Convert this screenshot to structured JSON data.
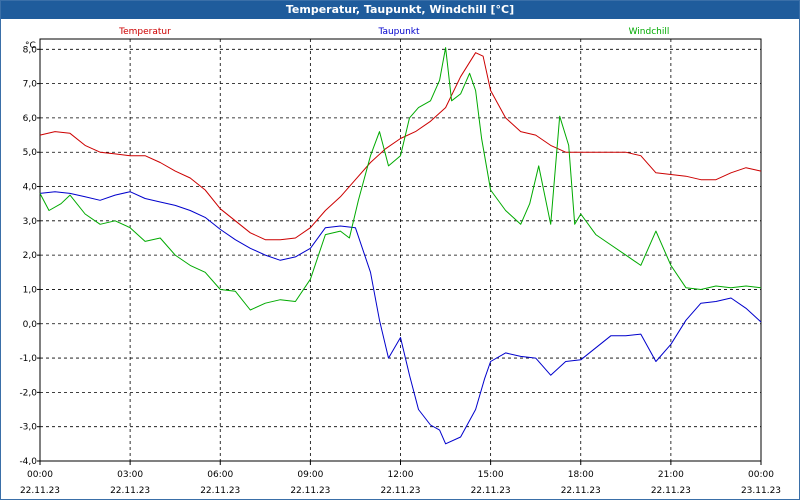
{
  "window": {
    "title": "Temperatur, Taupunkt, Windchill [°C]"
  },
  "chart_data": {
    "type": "line",
    "title": "Temperatur, Taupunkt, Windchill [°C]",
    "ylabel": "°C",
    "ylim": [
      -4.0,
      8.3
    ],
    "yticks": [
      "8,0",
      "7,0",
      "6,0",
      "5,0",
      "4,0",
      "3,0",
      "2,0",
      "1,0",
      "0,0",
      "-1,0",
      "-2,0",
      "-3,0",
      "-4,0"
    ],
    "xlim": [
      0,
      24
    ],
    "xticks": [
      {
        "time": "00:00",
        "date": "22.11.23"
      },
      {
        "time": "03:00",
        "date": "22.11.23"
      },
      {
        "time": "06:00",
        "date": "22.11.23"
      },
      {
        "time": "09:00",
        "date": "22.11.23"
      },
      {
        "time": "12:00",
        "date": "22.11.23"
      },
      {
        "time": "15:00",
        "date": "22.11.23"
      },
      {
        "time": "18:00",
        "date": "22.11.23"
      },
      {
        "time": "21:00",
        "date": "22.11.23"
      },
      {
        "time": "00:00",
        "date": "23.11.23"
      }
    ],
    "grid": true,
    "legend": "top",
    "series": [
      {
        "name": "Temperatur",
        "color": "#cc0000",
        "points": [
          [
            0,
            5.5
          ],
          [
            0.5,
            5.6
          ],
          [
            1,
            5.55
          ],
          [
            1.5,
            5.2
          ],
          [
            2,
            5.0
          ],
          [
            2.5,
            4.95
          ],
          [
            3,
            4.9
          ],
          [
            3.5,
            4.9
          ],
          [
            4,
            4.7
          ],
          [
            4.5,
            4.45
          ],
          [
            5,
            4.25
          ],
          [
            5.5,
            3.9
          ],
          [
            6,
            3.35
          ],
          [
            6.5,
            3.0
          ],
          [
            7,
            2.65
          ],
          [
            7.5,
            2.45
          ],
          [
            8,
            2.45
          ],
          [
            8.5,
            2.5
          ],
          [
            9,
            2.8
          ],
          [
            9.5,
            3.3
          ],
          [
            10,
            3.7
          ],
          [
            10.5,
            4.2
          ],
          [
            11,
            4.7
          ],
          [
            11.5,
            5.1
          ],
          [
            12,
            5.4
          ],
          [
            12.5,
            5.6
          ],
          [
            13,
            5.9
          ],
          [
            13.5,
            6.3
          ],
          [
            14,
            7.2
          ],
          [
            14.5,
            7.9
          ],
          [
            14.75,
            7.8
          ],
          [
            15,
            6.8
          ],
          [
            15.5,
            6.0
          ],
          [
            16,
            5.6
          ],
          [
            16.5,
            5.5
          ],
          [
            17,
            5.2
          ],
          [
            17.5,
            5.0
          ],
          [
            18,
            5.0
          ],
          [
            18.5,
            5.0
          ],
          [
            19,
            5.0
          ],
          [
            19.5,
            5.0
          ],
          [
            20,
            4.9
          ],
          [
            20.5,
            4.4
          ],
          [
            21,
            4.35
          ],
          [
            21.5,
            4.3
          ],
          [
            22,
            4.2
          ],
          [
            22.5,
            4.2
          ],
          [
            23,
            4.4
          ],
          [
            23.5,
            4.55
          ],
          [
            24,
            4.45
          ]
        ]
      },
      {
        "name": "Taupunkt",
        "color": "#0000cc",
        "points": [
          [
            0,
            3.8
          ],
          [
            0.5,
            3.85
          ],
          [
            1,
            3.8
          ],
          [
            1.5,
            3.7
          ],
          [
            2,
            3.6
          ],
          [
            2.5,
            3.75
          ],
          [
            3,
            3.85
          ],
          [
            3.5,
            3.65
          ],
          [
            4,
            3.55
          ],
          [
            4.5,
            3.45
          ],
          [
            5,
            3.3
          ],
          [
            5.5,
            3.1
          ],
          [
            6,
            2.75
          ],
          [
            6.5,
            2.45
          ],
          [
            7,
            2.2
          ],
          [
            7.5,
            2.0
          ],
          [
            8,
            1.85
          ],
          [
            8.5,
            1.95
          ],
          [
            9,
            2.2
          ],
          [
            9.5,
            2.8
          ],
          [
            10,
            2.85
          ],
          [
            10.5,
            2.8
          ],
          [
            11,
            1.5
          ],
          [
            11.3,
            0.1
          ],
          [
            11.6,
            -1.0
          ],
          [
            12,
            -0.4
          ],
          [
            12.3,
            -1.5
          ],
          [
            12.6,
            -2.5
          ],
          [
            13,
            -2.95
          ],
          [
            13.3,
            -3.1
          ],
          [
            13.5,
            -3.5
          ],
          [
            14,
            -3.3
          ],
          [
            14.5,
            -2.5
          ],
          [
            14.8,
            -1.6
          ],
          [
            15,
            -1.1
          ],
          [
            15.5,
            -0.85
          ],
          [
            16,
            -0.95
          ],
          [
            16.5,
            -1.0
          ],
          [
            17,
            -1.5
          ],
          [
            17.5,
            -1.1
          ],
          [
            18,
            -1.05
          ],
          [
            18.5,
            -0.7
          ],
          [
            19,
            -0.35
          ],
          [
            19.5,
            -0.35
          ],
          [
            20,
            -0.3
          ],
          [
            20.5,
            -1.1
          ],
          [
            21,
            -0.6
          ],
          [
            21.5,
            0.1
          ],
          [
            22,
            0.6
          ],
          [
            22.5,
            0.65
          ],
          [
            23,
            0.75
          ],
          [
            23.5,
            0.45
          ],
          [
            24,
            0.05
          ]
        ]
      },
      {
        "name": "Windchill",
        "color": "#00aa00",
        "points": [
          [
            0,
            3.8
          ],
          [
            0.3,
            3.3
          ],
          [
            0.7,
            3.5
          ],
          [
            1,
            3.75
          ],
          [
            1.5,
            3.2
          ],
          [
            2,
            2.9
          ],
          [
            2.5,
            3.0
          ],
          [
            3,
            2.8
          ],
          [
            3.5,
            2.4
          ],
          [
            4,
            2.5
          ],
          [
            4.5,
            2.0
          ],
          [
            5,
            1.7
          ],
          [
            5.5,
            1.5
          ],
          [
            6,
            1.0
          ],
          [
            6.5,
            0.95
          ],
          [
            7,
            0.4
          ],
          [
            7.5,
            0.6
          ],
          [
            8,
            0.7
          ],
          [
            8.5,
            0.65
          ],
          [
            9,
            1.3
          ],
          [
            9.5,
            2.6
          ],
          [
            10,
            2.7
          ],
          [
            10.3,
            2.5
          ],
          [
            10.6,
            3.6
          ],
          [
            11,
            4.9
          ],
          [
            11.3,
            5.6
          ],
          [
            11.6,
            4.6
          ],
          [
            12,
            4.9
          ],
          [
            12.3,
            6.0
          ],
          [
            12.6,
            6.3
          ],
          [
            13,
            6.5
          ],
          [
            13.3,
            7.1
          ],
          [
            13.5,
            8.05
          ],
          [
            13.7,
            6.5
          ],
          [
            14,
            6.7
          ],
          [
            14.3,
            7.3
          ],
          [
            14.5,
            6.8
          ],
          [
            14.7,
            5.4
          ],
          [
            15,
            3.9
          ],
          [
            15.5,
            3.3
          ],
          [
            16,
            2.9
          ],
          [
            16.3,
            3.5
          ],
          [
            16.6,
            4.6
          ],
          [
            17,
            2.9
          ],
          [
            17.3,
            6.05
          ],
          [
            17.6,
            5.2
          ],
          [
            17.8,
            2.9
          ],
          [
            18,
            3.2
          ],
          [
            18.5,
            2.6
          ],
          [
            19,
            2.3
          ],
          [
            19.5,
            2.0
          ],
          [
            20,
            1.7
          ],
          [
            20.5,
            2.7
          ],
          [
            21,
            1.7
          ],
          [
            21.5,
            1.05
          ],
          [
            22,
            1.0
          ],
          [
            22.5,
            1.1
          ],
          [
            23,
            1.05
          ],
          [
            23.5,
            1.1
          ],
          [
            24,
            1.05
          ]
        ]
      }
    ]
  }
}
